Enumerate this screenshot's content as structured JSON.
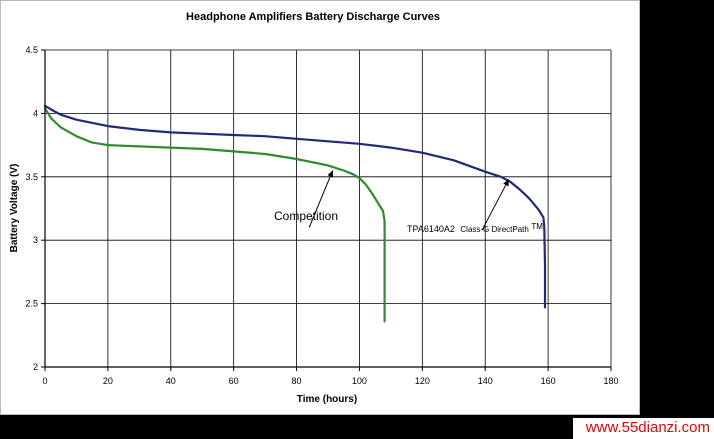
{
  "watermark": "www.55dianzi.com",
  "chart_data": {
    "type": "line",
    "title": "Headphone Amplifiers Battery Discharge Curves",
    "xlabel": "Time (hours)",
    "ylabel": "Battery Voltage (V)",
    "xlim": [
      0,
      180
    ],
    "ylim": [
      2,
      4.5
    ],
    "xticks": [
      0,
      20,
      40,
      60,
      80,
      100,
      120,
      140,
      160,
      180
    ],
    "yticks": [
      2,
      2.5,
      3,
      3.5,
      4,
      4.5
    ],
    "xtick_labels": [
      "0",
      "20",
      "40",
      "60",
      "80",
      "100",
      "120",
      "140",
      "160",
      "180"
    ],
    "ytick_labels": [
      "2",
      "2.5",
      "3",
      "3.5",
      "4",
      "4.5"
    ],
    "grid": true,
    "legend": "none",
    "series": [
      {
        "name": "TPA6140A2 Class-G DirectPath",
        "color": "#1f2a78",
        "x": [
          0,
          2,
          5,
          10,
          20,
          30,
          40,
          50,
          60,
          70,
          80,
          90,
          100,
          110,
          120,
          130,
          140,
          145,
          148,
          151,
          154,
          157,
          158.5,
          158.8,
          159,
          159
        ],
        "y": [
          4.06,
          4.03,
          3.99,
          3.95,
          3.9,
          3.87,
          3.85,
          3.84,
          3.83,
          3.82,
          3.8,
          3.78,
          3.76,
          3.73,
          3.69,
          3.63,
          3.54,
          3.5,
          3.46,
          3.4,
          3.33,
          3.24,
          3.18,
          3.1,
          2.8,
          2.47
        ]
      },
      {
        "name": "Competition",
        "color": "#2e8b2e",
        "x": [
          0,
          2,
          5,
          10,
          15,
          20,
          30,
          40,
          50,
          60,
          70,
          80,
          90,
          95,
          98,
          100,
          102,
          104,
          106,
          107.5,
          108,
          108,
          108
        ],
        "y": [
          4.04,
          3.96,
          3.89,
          3.82,
          3.77,
          3.75,
          3.74,
          3.73,
          3.72,
          3.7,
          3.68,
          3.64,
          3.59,
          3.55,
          3.52,
          3.49,
          3.44,
          3.37,
          3.29,
          3.23,
          3.15,
          2.8,
          2.36
        ]
      }
    ],
    "annotations": [
      {
        "text": "Competition"
      },
      {
        "text_main": "TPA6140A2",
        "text_small": "Class-G DirectPath",
        "text_tm": "TM"
      }
    ]
  }
}
